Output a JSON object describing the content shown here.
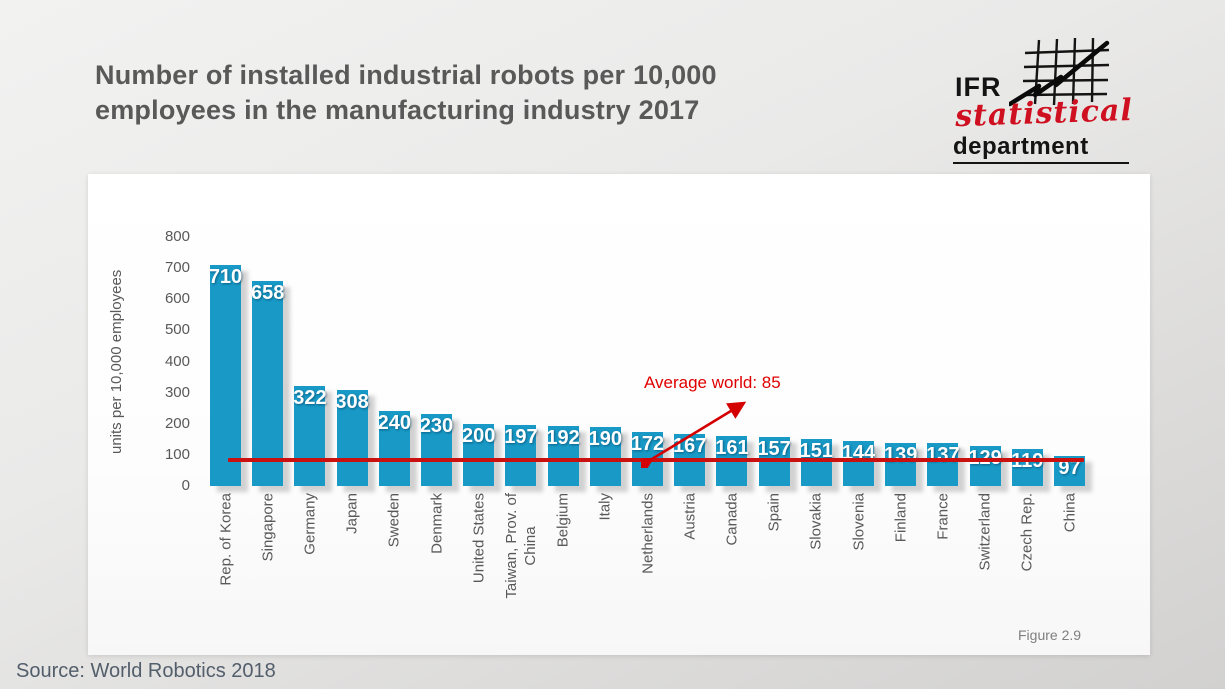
{
  "title": "Number of installed industrial robots per 10,000 employees in the manufacturing industry 2017",
  "logo": {
    "ifr": "IFR",
    "statistical": "statistical",
    "department": "department"
  },
  "chart_data": {
    "type": "bar",
    "title": "Number of installed industrial robots per 10,000 employees in the manufacturing industry 2017",
    "xlabel": "",
    "ylabel": "units per 10,000 employees",
    "ylim": [
      0,
      800
    ],
    "yticks": [
      0,
      100,
      200,
      300,
      400,
      500,
      600,
      700,
      800
    ],
    "grid": false,
    "legend": false,
    "categories": [
      "Rep. of Korea",
      "Singapore",
      "Germany",
      "Japan",
      "Sweden",
      "Denmark",
      "United States",
      "Taiwan, Prov. of\nChina",
      "Belgium",
      "Italy",
      "Netherlands",
      "Austria",
      "Canada",
      "Spain",
      "Slovakia",
      "Slovenia",
      "Finland",
      "France",
      "Switzerland",
      "Czech Rep.",
      "China"
    ],
    "values": [
      710,
      658,
      322,
      308,
      240,
      230,
      200,
      197,
      192,
      190,
      172,
      167,
      161,
      157,
      151,
      144,
      139,
      137,
      129,
      119,
      97
    ],
    "average_line": {
      "label": "Average world: 85",
      "value": 85
    },
    "bar_color": "#1899c6",
    "line_color": "#cb1010",
    "annotation_color": "#e00000"
  },
  "figure_label": "Figure 2.9",
  "source": "Source: World Robotics 2018"
}
